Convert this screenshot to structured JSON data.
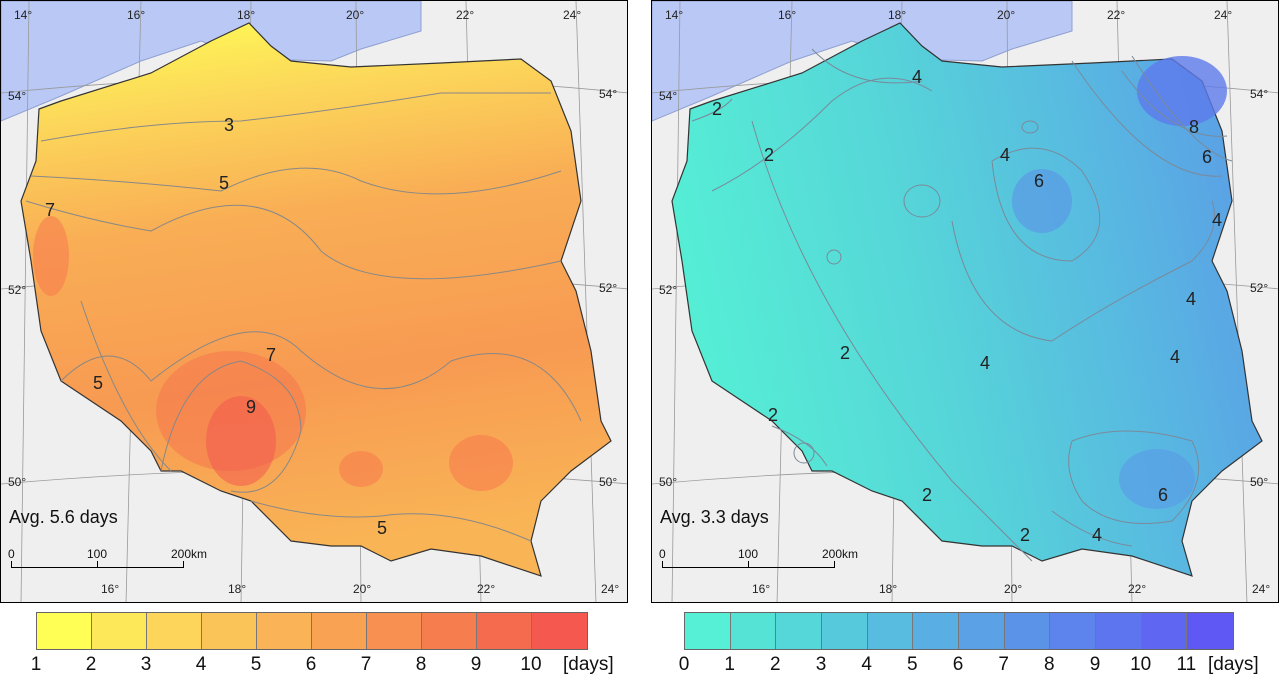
{
  "left_map": {
    "avg_label": "Avg. 5.6 days",
    "lon_top": [
      "14°",
      "16°",
      "18°",
      "20°",
      "22°",
      "24°"
    ],
    "lon_bottom": [
      "16°",
      "18°",
      "20°",
      "22°",
      "24°"
    ],
    "lat_left": [
      "54°",
      "52°",
      "50°"
    ],
    "lat_right": [
      "54°",
      "52°",
      "50°"
    ],
    "scale": [
      "0",
      "100",
      "200km"
    ],
    "isoline_labels": [
      "3",
      "5",
      "7",
      "7",
      "9",
      "5",
      "5"
    ],
    "legend": {
      "numbers": [
        "1",
        "2",
        "3",
        "4",
        "5",
        "6",
        "7",
        "8",
        "9",
        "10"
      ],
      "unit": "[days]",
      "colors": [
        "#ffff55",
        "#fde85a",
        "#fcd55a",
        "#fbc458",
        "#fab356",
        "#f9a254",
        "#f79050",
        "#f67d4e",
        "#f56b4e",
        "#f4584f"
      ]
    }
  },
  "right_map": {
    "avg_label": "Avg. 3.3 days",
    "lon_top": [
      "14°",
      "16°",
      "18°",
      "20°",
      "22°",
      "24°"
    ],
    "lon_bottom": [
      "16°",
      "18°",
      "20°",
      "22°",
      "24°"
    ],
    "lat_left": [
      "54°",
      "52°",
      "50°"
    ],
    "lat_right": [
      "54°",
      "52°",
      "50°"
    ],
    "scale": [
      "0",
      "100",
      "200km"
    ],
    "isoline_labels": [
      "2",
      "4",
      "2",
      "6",
      "4",
      "8",
      "6",
      "4",
      "4",
      "2",
      "4",
      "4",
      "2",
      "2",
      "6",
      "2",
      "4"
    ],
    "legend": {
      "numbers": [
        "0",
        "1",
        "2",
        "3",
        "4",
        "5",
        "6",
        "7",
        "8",
        "9",
        "10",
        "11"
      ],
      "unit": "[days]",
      "colors": [
        "#55f0d5",
        "#55e3d5",
        "#55d6d8",
        "#56c9dc",
        "#58bce0",
        "#59afe3",
        "#5aa1e6",
        "#5b93e9",
        "#5c84ec",
        "#5d75ef",
        "#5e66f2",
        "#6058f5"
      ]
    }
  }
}
